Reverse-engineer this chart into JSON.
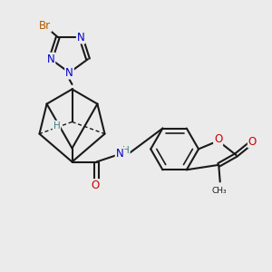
{
  "background_color": "#ebebeb",
  "bond_color": "#1a1a1a",
  "bond_width": 1.5,
  "atom_colors": {
    "Br": "#b35a00",
    "N": "#0000cc",
    "O": "#cc0000",
    "H": "#408080",
    "C": "#1a1a1a"
  },
  "fs": 8.5
}
